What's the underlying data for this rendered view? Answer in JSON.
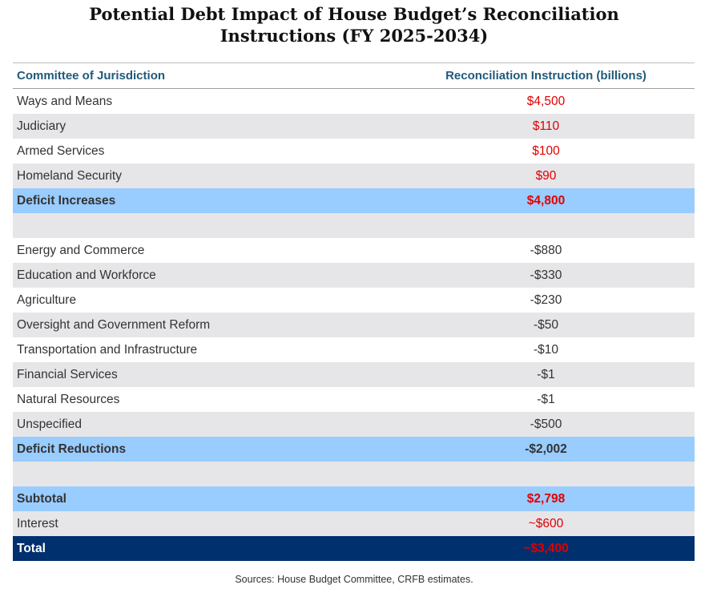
{
  "title_line1": "Potential Debt Impact of House Budget’s Reconciliation",
  "title_line2": "Instructions (FY 2025-2034)",
  "colors": {
    "header_text": "#1f5a7a",
    "gray_row": "#e6e6e9",
    "subtotal_row": "#99ccff",
    "total_row": "#00306e",
    "positive_value": "#e00000"
  },
  "chart_data": {
    "type": "table",
    "title": "Potential Debt Impact of House Budget’s Reconciliation Instructions (FY 2025-2034)",
    "columns": [
      "Committee of Jurisdiction",
      "Reconciliation Instruction (billions)"
    ],
    "rows": [
      {
        "label": "Ways and Means",
        "value": "$4,500",
        "style": "white",
        "red": true
      },
      {
        "label": "Judiciary",
        "value": "$110",
        "style": "gray",
        "red": true
      },
      {
        "label": "Armed Services",
        "value": "$100",
        "style": "white",
        "red": true
      },
      {
        "label": "Homeland Security",
        "value": "$90",
        "style": "gray",
        "red": true
      },
      {
        "label": "Deficit Increases",
        "value": "$4,800",
        "style": "blue",
        "red": true
      },
      {
        "label": "",
        "value": "",
        "style": "gray",
        "red": false
      },
      {
        "label": "Energy and Commerce",
        "value": "-$880",
        "style": "white",
        "red": false
      },
      {
        "label": "Education and Workforce",
        "value": "-$330",
        "style": "gray",
        "red": false
      },
      {
        "label": "Agriculture",
        "value": "-$230",
        "style": "white",
        "red": false
      },
      {
        "label": "Oversight and Government Reform",
        "value": "-$50",
        "style": "gray",
        "red": false
      },
      {
        "label": "Transportation and Infrastructure",
        "value": "-$10",
        "style": "white",
        "red": false
      },
      {
        "label": "Financial Services",
        "value": "-$1",
        "style": "gray",
        "red": false
      },
      {
        "label": "Natural Resources",
        "value": "-$1",
        "style": "white",
        "red": false
      },
      {
        "label": "Unspecified",
        "value": "-$500",
        "style": "gray",
        "red": false
      },
      {
        "label": "Deficit Reductions",
        "value": "-$2,002",
        "style": "blue",
        "red": false
      },
      {
        "label": "",
        "value": "",
        "style": "gray",
        "red": false
      },
      {
        "label": "Subtotal",
        "value": "$2,798",
        "style": "blue",
        "red": true
      },
      {
        "label": "Interest",
        "value": "~$600",
        "style": "gray",
        "red": true
      },
      {
        "label": "Total",
        "value": "~$3,400",
        "style": "navy",
        "red": true
      }
    ],
    "source": "Sources: House Budget Committee, CRFB estimates."
  }
}
